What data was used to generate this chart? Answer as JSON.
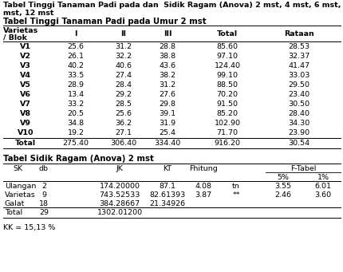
{
  "title1_line1": "Tabel Tinggi Tanaman Padi pada dan  Sidik Ragam (Anova) 2 mst, 4 mst, 6 mst,",
  "title1_line2": "mst, 12 mst",
  "title2": "Tabel Tinggi Tanaman Padi pada Umur 2 mst",
  "t1_header": [
    "Varietas",
    "/ Blok",
    "I",
    "II",
    "III",
    "Total",
    "Rataan"
  ],
  "table1_data": [
    [
      "V1",
      "25.6",
      "31.2",
      "28.8",
      "85.60",
      "28.53"
    ],
    [
      "V2",
      "26.1",
      "32.2",
      "38.8",
      "97.10",
      "32.37"
    ],
    [
      "V3",
      "40.2",
      "40.6",
      "43.6",
      "124.40",
      "41.47"
    ],
    [
      "V4",
      "33.5",
      "27.4",
      "38.2",
      "99.10",
      "33.03"
    ],
    [
      "V5",
      "28.9",
      "28.4",
      "31.2",
      "88.50",
      "29.50"
    ],
    [
      "V6",
      "13.4",
      "29.2",
      "27.6",
      "70.20",
      "23.40"
    ],
    [
      "V7",
      "33.2",
      "28.5",
      "29.8",
      "91.50",
      "30.50"
    ],
    [
      "V8",
      "20.5",
      "25.6",
      "39.1",
      "85.20",
      "28.40"
    ],
    [
      "V9",
      "34.8",
      "36.2",
      "31.9",
      "102.90",
      "34.30"
    ],
    [
      "V10",
      "19.2",
      "27.1",
      "25.4",
      "71.70",
      "23.90"
    ]
  ],
  "total_row": [
    "Total",
    "275.40",
    "306.40",
    "334.40",
    "916.20",
    "30.54"
  ],
  "title3": "Tabel Sidik Ragam (Anova) 2 mst",
  "anova_data": [
    [
      "Ulangan",
      "2",
      "174.20000",
      "87.1",
      "4.08",
      "tn",
      "3.55",
      "6.01"
    ],
    [
      "Varietas",
      "9",
      "743.52533",
      "82.61393",
      "3.87",
      "**",
      "2.46",
      "3.60"
    ],
    [
      "Galat",
      "18",
      "384.28667",
      "21.34926",
      "",
      "",
      "",
      ""
    ],
    [
      "Total",
      "29",
      "1302.01200",
      "",
      "",
      "",
      "",
      ""
    ]
  ],
  "kk": "KK = 15,13 %",
  "bg_color": "#ffffff",
  "fontsize": 6.8
}
